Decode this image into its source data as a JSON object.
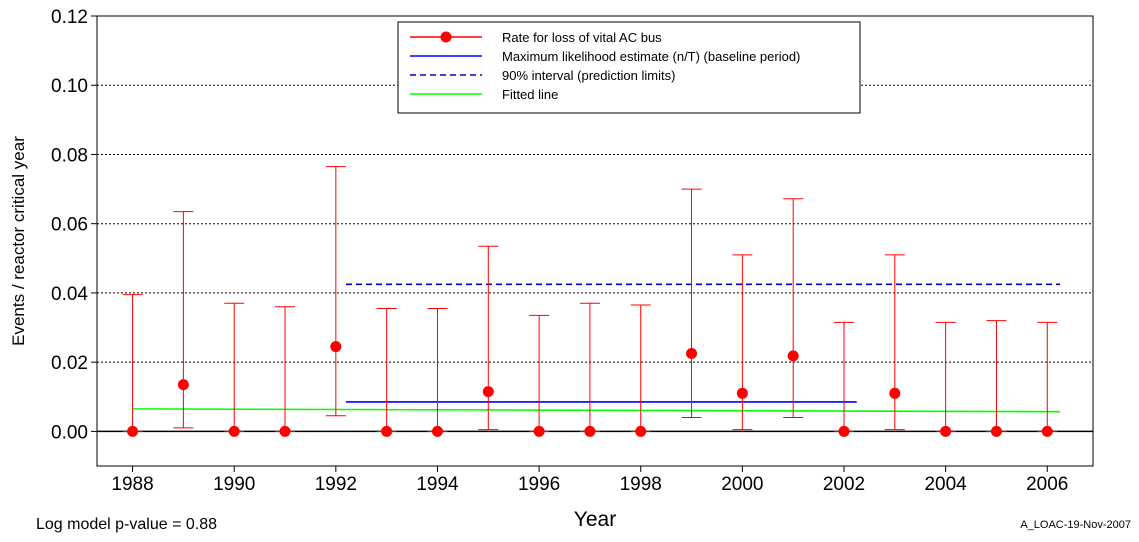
{
  "chart_data": {
    "type": "scatter",
    "xlabel": "Year",
    "ylabel": "Events / reactor critical year",
    "xlim": [
      1987.3,
      2006.9
    ],
    "ylim": [
      -0.01,
      0.12
    ],
    "x_ticks": [
      1988,
      1990,
      1992,
      1994,
      1996,
      1998,
      2000,
      2002,
      2004,
      2006
    ],
    "y_ticks": [
      "0.00",
      "0.02",
      "0.04",
      "0.06",
      "0.08",
      "0.10",
      "0.12"
    ],
    "grid": "horizontal dotted",
    "legend_position": "top-center",
    "series": [
      {
        "name": "Rate for loss of vital AC bus",
        "style": "points with error bars",
        "color": "#ff0000",
        "x": [
          1988,
          1989,
          1990,
          1991,
          1992,
          1993,
          1994,
          1995,
          1996,
          1997,
          1998,
          1999,
          2000,
          2001,
          2002,
          2003,
          2004,
          2005,
          2006
        ],
        "y": [
          0.0,
          0.0135,
          0.0,
          0.0,
          0.0245,
          0.0,
          0.0,
          0.0115,
          0.0,
          0.0,
          0.0,
          0.0225,
          0.011,
          0.0218,
          0.0,
          0.011,
          0.0,
          0.0,
          0.0
        ],
        "upper": [
          0.0395,
          0.0635,
          0.037,
          0.036,
          0.0765,
          0.0355,
          0.0355,
          0.0535,
          0.0335,
          0.037,
          0.0365,
          0.07,
          0.051,
          0.0672,
          0.0315,
          0.051,
          0.0315,
          0.032,
          0.0315
        ],
        "lower": [
          0.0,
          0.001,
          0.0,
          0.0,
          0.0045,
          0.0,
          0.0,
          0.0005,
          0.0,
          0.0,
          0.0,
          0.004,
          0.0005,
          0.004,
          0.0,
          0.0005,
          0.0,
          0.0,
          0.0
        ]
      },
      {
        "name": "Maximum likelihood estimate (n/T) (baseline period)",
        "style": "solid",
        "color": "#0000ff",
        "x": [
          1992.2,
          2002.25
        ],
        "y": [
          0.0085,
          0.0085
        ]
      },
      {
        "name": "90% interval (prediction limits)",
        "style": "dashed",
        "color": "#0000cc",
        "x": [
          1992.2,
          2006.25
        ],
        "y": [
          0.0425,
          0.0425
        ]
      },
      {
        "name": "Fitted line",
        "style": "solid",
        "color": "#00ff00",
        "x": [
          1988,
          2006.25
        ],
        "y": [
          0.0065,
          0.0057
        ]
      }
    ]
  },
  "footer": {
    "pvalue": "Log model p-value = 0.88",
    "stamp": "A_LOAC-19-Nov-2007"
  }
}
